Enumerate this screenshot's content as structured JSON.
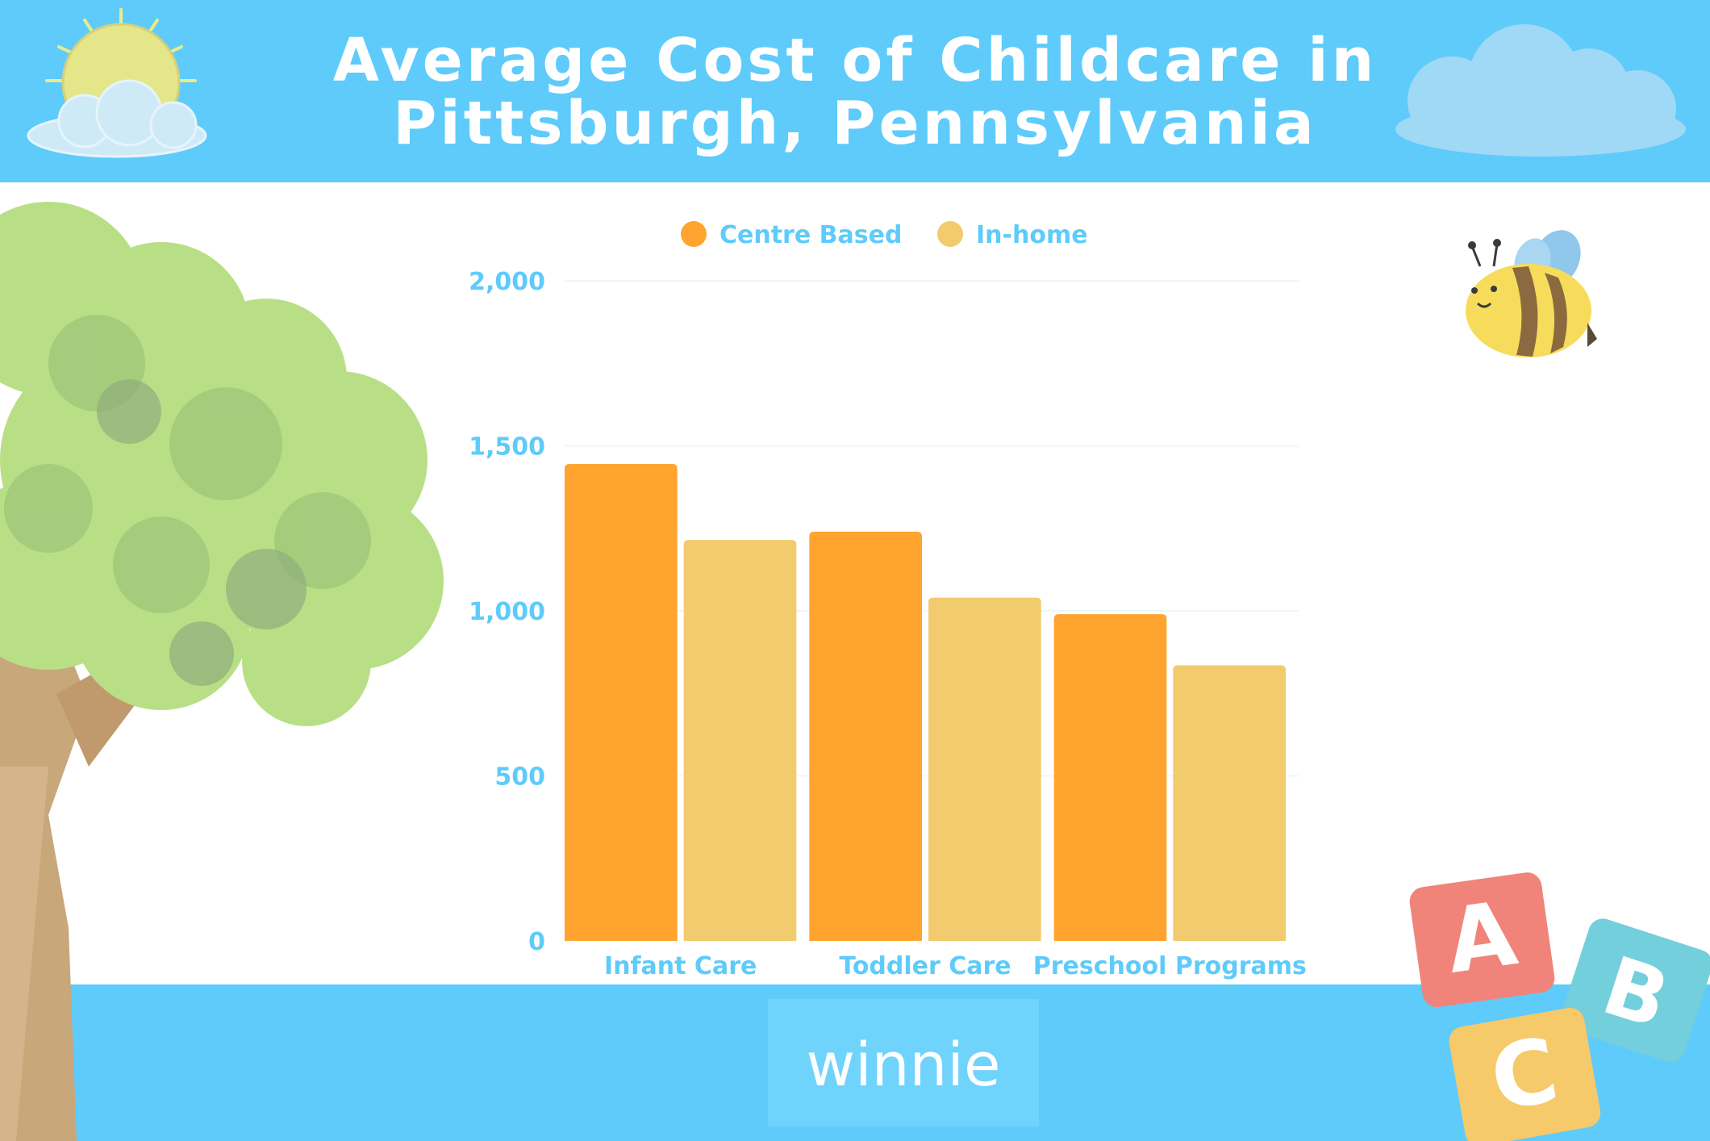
{
  "title": {
    "line1": "Average Cost of Childcare in",
    "line2": "Pittsburgh, Pennsylvania"
  },
  "brand": {
    "logo_text": "winnie"
  },
  "colors": {
    "header_band": "#5ecbfb",
    "axis_text": "#5ecbfb",
    "centre_based": "#ffa42e",
    "in_home": "#f2cb6e"
  },
  "decorations": [
    "sun-icon",
    "cloud-icon",
    "tree-illustration",
    "bee-illustration",
    "abc-blocks-illustration"
  ],
  "chart_data": {
    "type": "bar",
    "categories": [
      "Infant Care",
      "Toddler Care",
      "Preschool Programs"
    ],
    "series": [
      {
        "name": "Centre Based",
        "values": [
          1445,
          1240,
          990
        ],
        "color": "#ffa42e"
      },
      {
        "name": "In-home",
        "values": [
          1215,
          1040,
          835
        ],
        "color": "#f2cb6e"
      }
    ],
    "y_ticks": [
      "0",
      "500",
      "1,000",
      "1,500",
      "2,000"
    ],
    "ylim": [
      0,
      2000
    ],
    "grid": true,
    "legend": "top-center",
    "xlabel": "",
    "ylabel": ""
  }
}
